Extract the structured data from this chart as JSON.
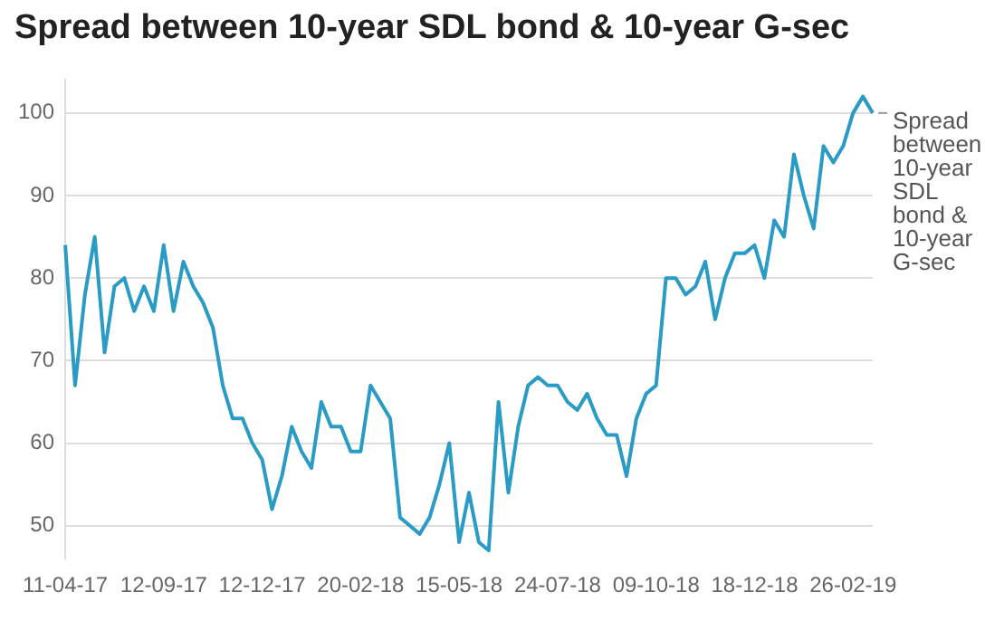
{
  "chart_data": {
    "type": "line",
    "title": "Spread between 10-year SDL bond & 10-year G-sec",
    "categories": [
      "11-04-17",
      null,
      null,
      null,
      null,
      null,
      null,
      null,
      null,
      null,
      "12-09-17",
      null,
      null,
      null,
      null,
      null,
      null,
      null,
      null,
      null,
      "12-12-17",
      null,
      null,
      null,
      null,
      null,
      null,
      null,
      null,
      null,
      "20-02-18",
      null,
      null,
      null,
      null,
      null,
      null,
      null,
      null,
      null,
      "15-05-18",
      null,
      null,
      null,
      null,
      null,
      null,
      null,
      null,
      null,
      "24-07-18",
      null,
      null,
      null,
      null,
      null,
      null,
      null,
      null,
      null,
      "09-10-18",
      null,
      null,
      null,
      null,
      null,
      null,
      null,
      null,
      null,
      "18-12-18",
      null,
      null,
      null,
      null,
      null,
      null,
      null,
      null,
      null,
      "26-02-19",
      null,
      null
    ],
    "series": [
      {
        "name": "Spread between 10-year SDL bond & 10-year G-sec",
        "color": "#2a9bc4",
        "values": [
          84,
          67,
          78,
          85,
          71,
          79,
          80,
          76,
          79,
          76,
          84,
          76,
          82,
          79,
          77,
          74,
          67,
          63,
          63,
          60,
          58,
          52,
          56,
          62,
          59,
          57,
          65,
          62,
          62,
          59,
          59,
          67,
          65,
          63,
          51,
          50,
          49,
          51,
          55,
          60,
          48,
          54,
          48,
          47,
          65,
          54,
          62,
          67,
          68,
          67,
          67,
          65,
          64,
          66,
          63,
          61,
          61,
          56,
          63,
          66,
          67,
          80,
          80,
          78,
          79,
          82,
          75,
          80,
          83,
          83,
          84,
          80,
          87,
          85,
          95,
          90,
          86,
          96,
          94,
          96,
          100,
          102,
          100
        ]
      }
    ],
    "ylim": [
      46,
      104
    ],
    "yticks": [
      50,
      60,
      70,
      80,
      90,
      100
    ],
    "grid": "y",
    "legend": false,
    "marker": "none",
    "line_style": "solid"
  }
}
